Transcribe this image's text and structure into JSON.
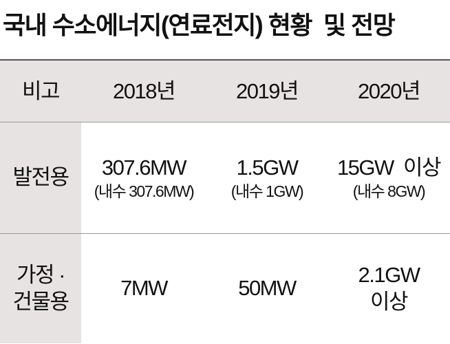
{
  "title": "국내 수소에너지(연료전지) 현황  및 전망",
  "table": {
    "header": [
      "비고",
      "2018년",
      "2019년",
      "2020년"
    ],
    "rows": [
      [
        [
          "발전용"
        ],
        [
          "307.6MW",
          "(내수 307.6MW)"
        ],
        [
          "1.5GW",
          "(내수 1GW)"
        ],
        [
          "15GW  이상",
          "(내수 8GW)"
        ]
      ],
      [
        [
          "가정 ·",
          "건물용"
        ],
        [
          "7MW"
        ],
        [
          "50MW"
        ],
        [
          "2.1GW",
          "이상"
        ]
      ]
    ]
  }
}
